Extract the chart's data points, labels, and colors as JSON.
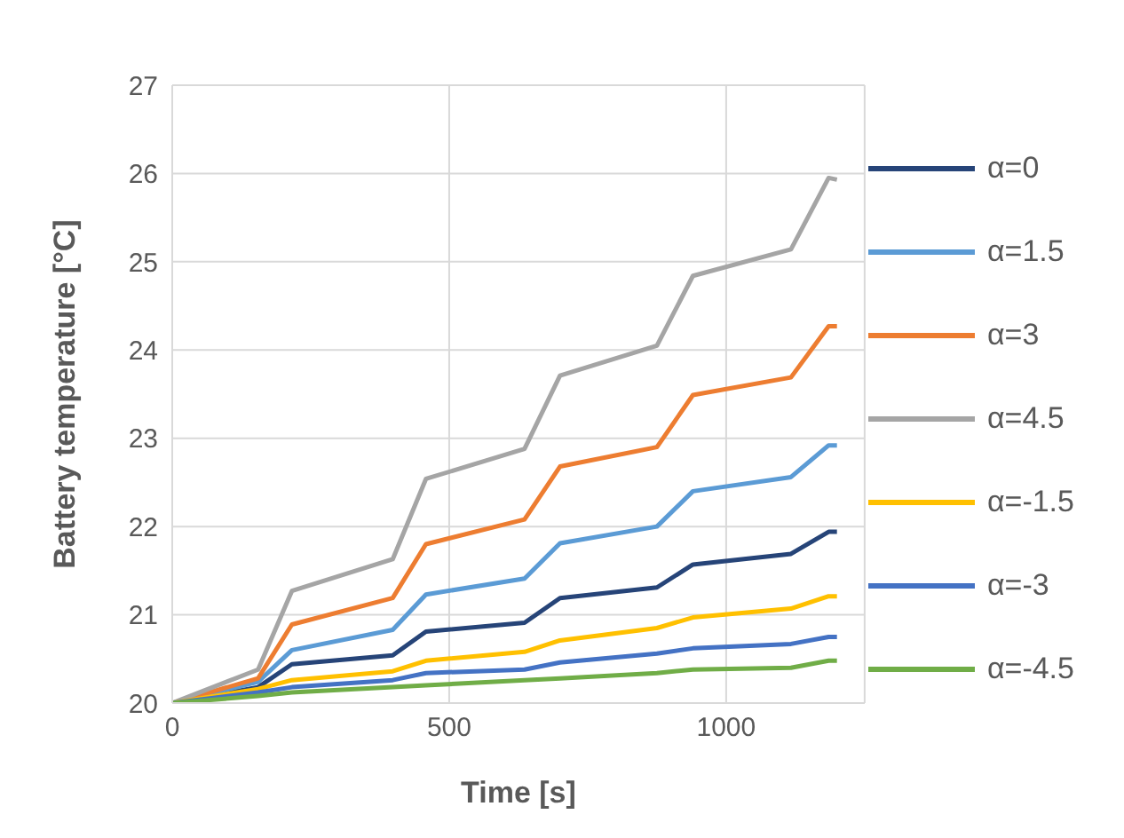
{
  "chart_data": {
    "type": "line",
    "xlabel": "Time [s]",
    "ylabel": "Battery temperature [°C]",
    "x": [
      0,
      155,
      216,
      398,
      458,
      636,
      700,
      875,
      940,
      1117,
      1185,
      1200
    ],
    "series": [
      {
        "name": "α=0",
        "color": "#264478",
        "values": [
          20,
          20.18,
          20.44,
          20.54,
          20.81,
          20.91,
          21.19,
          21.31,
          21.57,
          21.69,
          21.94,
          21.94
        ]
      },
      {
        "name": "α=1.5",
        "color": "#5b9bd5",
        "values": [
          20,
          20.24,
          20.6,
          20.83,
          21.23,
          21.41,
          21.81,
          22.0,
          22.4,
          22.56,
          22.92,
          22.92
        ]
      },
      {
        "name": "α=3",
        "color": "#ed7d31",
        "values": [
          20,
          20.28,
          20.89,
          21.19,
          21.8,
          22.08,
          22.68,
          22.9,
          23.49,
          23.69,
          24.27,
          24.27
        ]
      },
      {
        "name": "α=4.5",
        "color": "#a5a5a5",
        "values": [
          20,
          20.38,
          21.27,
          21.63,
          22.54,
          22.88,
          23.71,
          24.05,
          24.84,
          25.14,
          25.95,
          25.93
        ]
      },
      {
        "name": "α=-1.5",
        "color": "#ffc000",
        "values": [
          20,
          20.16,
          20.26,
          20.36,
          20.48,
          20.58,
          20.71,
          20.85,
          20.97,
          21.07,
          21.21,
          21.21
        ]
      },
      {
        "name": "α=-3",
        "color": "#4472c4",
        "values": [
          20,
          20.12,
          20.18,
          20.26,
          20.34,
          20.38,
          20.46,
          20.56,
          20.62,
          20.67,
          20.75,
          20.75
        ]
      },
      {
        "name": "α=-4.5",
        "color": "#70ad47",
        "values": [
          20,
          20.08,
          20.12,
          20.18,
          20.2,
          20.26,
          20.28,
          20.34,
          20.38,
          20.4,
          20.48,
          20.48
        ]
      }
    ],
    "xlim": [
      0,
      1250
    ],
    "xticks": [
      0,
      500,
      1000
    ],
    "ylim": [
      20,
      27
    ],
    "yticks": [
      20,
      21,
      22,
      23,
      24,
      25,
      26,
      27
    ],
    "grid": true,
    "legend": "right",
    "marker": "none",
    "line_style": "solid"
  }
}
